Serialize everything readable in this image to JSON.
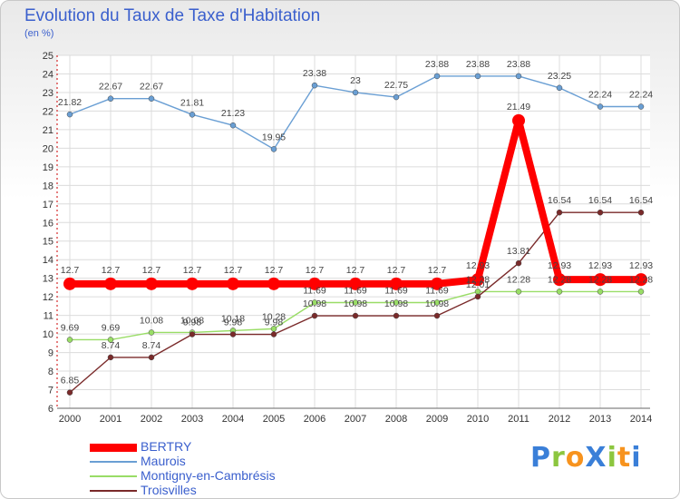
{
  "chart_data": {
    "type": "line",
    "title": "Evolution du Taux de Taxe d'Habitation",
    "unit_label": "(en %)",
    "x": [
      "2000",
      "2001",
      "2002",
      "2003",
      "2004",
      "2005",
      "2006",
      "2007",
      "2008",
      "2009",
      "2010",
      "2011",
      "2012",
      "2013",
      "2014"
    ],
    "ylim": [
      6,
      25
    ],
    "yticks": [
      6,
      7,
      8,
      9,
      10,
      11,
      12,
      13,
      14,
      15,
      16,
      17,
      18,
      19,
      20,
      21,
      22,
      23,
      24,
      25
    ],
    "grid": true,
    "legend_position": "bottom-left",
    "series": [
      {
        "name": "BERTRY",
        "color": "#ff0000",
        "values": [
          12.7,
          12.7,
          12.7,
          12.7,
          12.7,
          12.7,
          12.7,
          12.7,
          12.7,
          12.7,
          12.93,
          21.49,
          12.93,
          12.93,
          12.93
        ],
        "labels": [
          "12.7",
          "12.7",
          "12.7",
          "12.7",
          "12.7",
          "12.7",
          "12.7",
          "12.7",
          "12.7",
          "12.7",
          "12.93",
          "21.49",
          "12.93",
          "12.93",
          "12.93"
        ]
      },
      {
        "name": "Maurois",
        "color": "#6a9fd4",
        "values": [
          21.82,
          22.67,
          22.67,
          21.81,
          21.23,
          19.95,
          23.38,
          23,
          22.75,
          23.88,
          23.88,
          23.88,
          23.25,
          22.24,
          22.24
        ],
        "labels": [
          "21.82",
          "22.67",
          "22.67",
          "21.81",
          "21.23",
          "19.95",
          "23.38",
          "23",
          "22.75",
          "23.88",
          "23.88",
          "23.88",
          "23.25",
          "22.24",
          "22.24"
        ]
      },
      {
        "name": "Montigny-en-Cambrésis",
        "color": "#99dd66",
        "values": [
          9.69,
          9.69,
          10.08,
          10.08,
          10.18,
          10.28,
          11.69,
          11.69,
          11.69,
          11.69,
          12.28,
          12.28,
          12.28,
          12.28,
          12.28
        ],
        "labels": [
          "9.69",
          "9.69",
          "10.08",
          "10.08",
          "10.18",
          "10.28",
          "11.69",
          "11.69",
          "11.69",
          "11.69",
          "12.28",
          "12.28",
          "12.28",
          "12.28",
          "12.28"
        ]
      },
      {
        "name": "Troisvilles",
        "color": "#7a2a2a",
        "values": [
          6.85,
          8.74,
          8.74,
          9.98,
          9.98,
          9.98,
          10.98,
          10.98,
          10.98,
          10.98,
          12.01,
          13.81,
          16.54,
          16.54,
          16.54
        ],
        "labels": [
          "6.85",
          "8.74",
          "8.74",
          "9.98",
          "9.98",
          "9.98",
          "10.98",
          "10.98",
          "10.98",
          "10.98",
          "12.01",
          "13.81",
          "16.54",
          "16.54",
          "16.54"
        ]
      }
    ]
  },
  "logo": {
    "letters": [
      {
        "ch": "P",
        "color": "#3a7fd8"
      },
      {
        "ch": "r",
        "color": "#8cc63f"
      },
      {
        "ch": "o",
        "color": "#f7931e"
      },
      {
        "ch": "X",
        "color": "#3a7fd8"
      },
      {
        "ch": "i",
        "color": "#8cc63f"
      },
      {
        "ch": "t",
        "color": "#f7931e"
      },
      {
        "ch": "i",
        "color": "#3a7fd8"
      }
    ]
  }
}
